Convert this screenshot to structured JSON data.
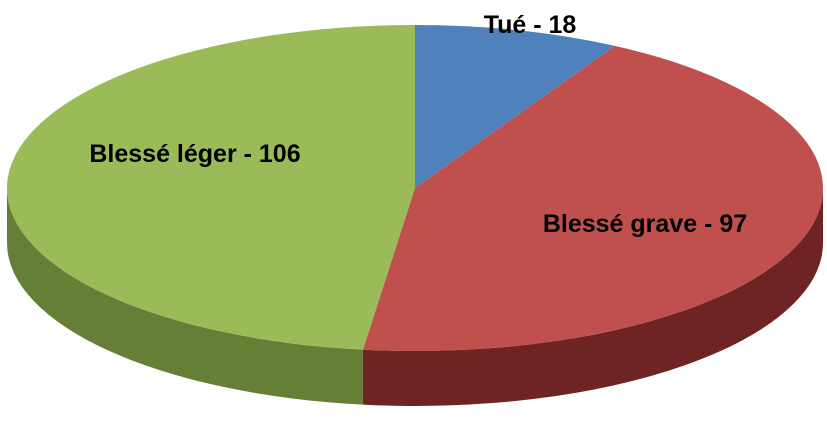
{
  "chart_data": {
    "type": "pie",
    "values": [
      18,
      97,
      106
    ],
    "value_labels": [
      "Tué - 18",
      "Blessé grave - 97",
      "Blessé léger - 106"
    ],
    "colors": [
      "#4f81bd",
      "#c0504d",
      "#9bbb59"
    ],
    "side_colors": [
      "#2c4d74",
      "#6e2422",
      "#667f36"
    ]
  }
}
